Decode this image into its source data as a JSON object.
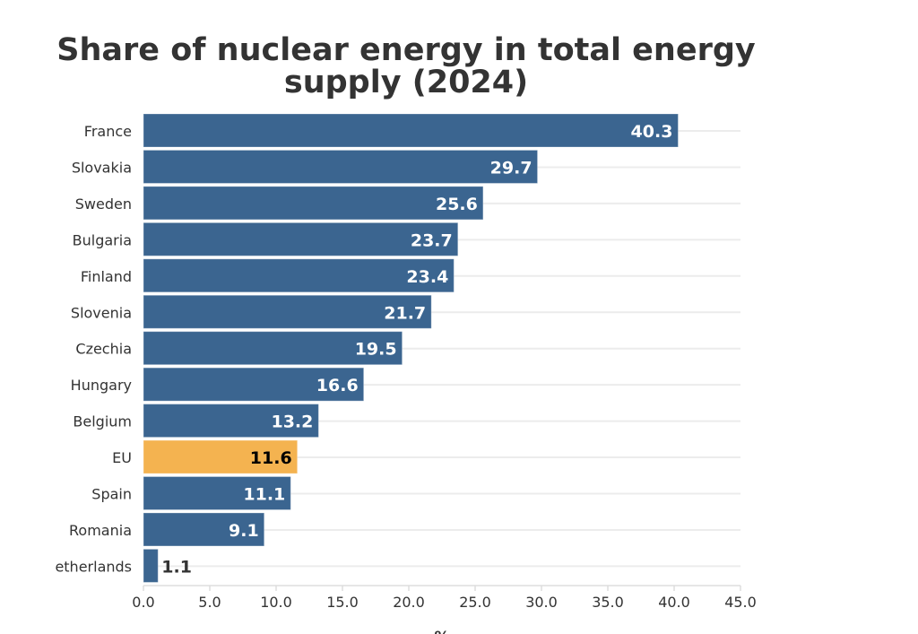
{
  "chart_data": {
    "type": "bar",
    "orientation": "horizontal",
    "title": "Share of nuclear energy in total energy supply (2024)",
    "xlabel": "%",
    "ylabel": "",
    "xlim": [
      0,
      45
    ],
    "xticks": [
      "0.0",
      "5.0",
      "10.0",
      "15.0",
      "20.0",
      "25.0",
      "30.0",
      "35.0",
      "40.0",
      "45.0"
    ],
    "grid": true,
    "categories": [
      "France",
      "Slovakia",
      "Sweden",
      "Bulgaria",
      "Finland",
      "Slovenia",
      "Czechia",
      "Hungary",
      "Belgium",
      "EU",
      "Spain",
      "Romania",
      "Netherlands"
    ],
    "values": [
      40.3,
      29.7,
      25.6,
      23.7,
      23.4,
      21.7,
      19.5,
      16.6,
      13.2,
      11.6,
      11.1,
      9.1,
      1.1
    ],
    "labels": [
      "40.3",
      "29.7",
      "25.6",
      "23.7",
      "23.4",
      "21.7",
      "19.5",
      "16.6",
      "13.2",
      "11.6",
      "11.1",
      "9.1",
      "1.1"
    ],
    "highlight": "EU",
    "colors": {
      "bar": "#3b6590",
      "highlight": "#f4b350"
    }
  }
}
